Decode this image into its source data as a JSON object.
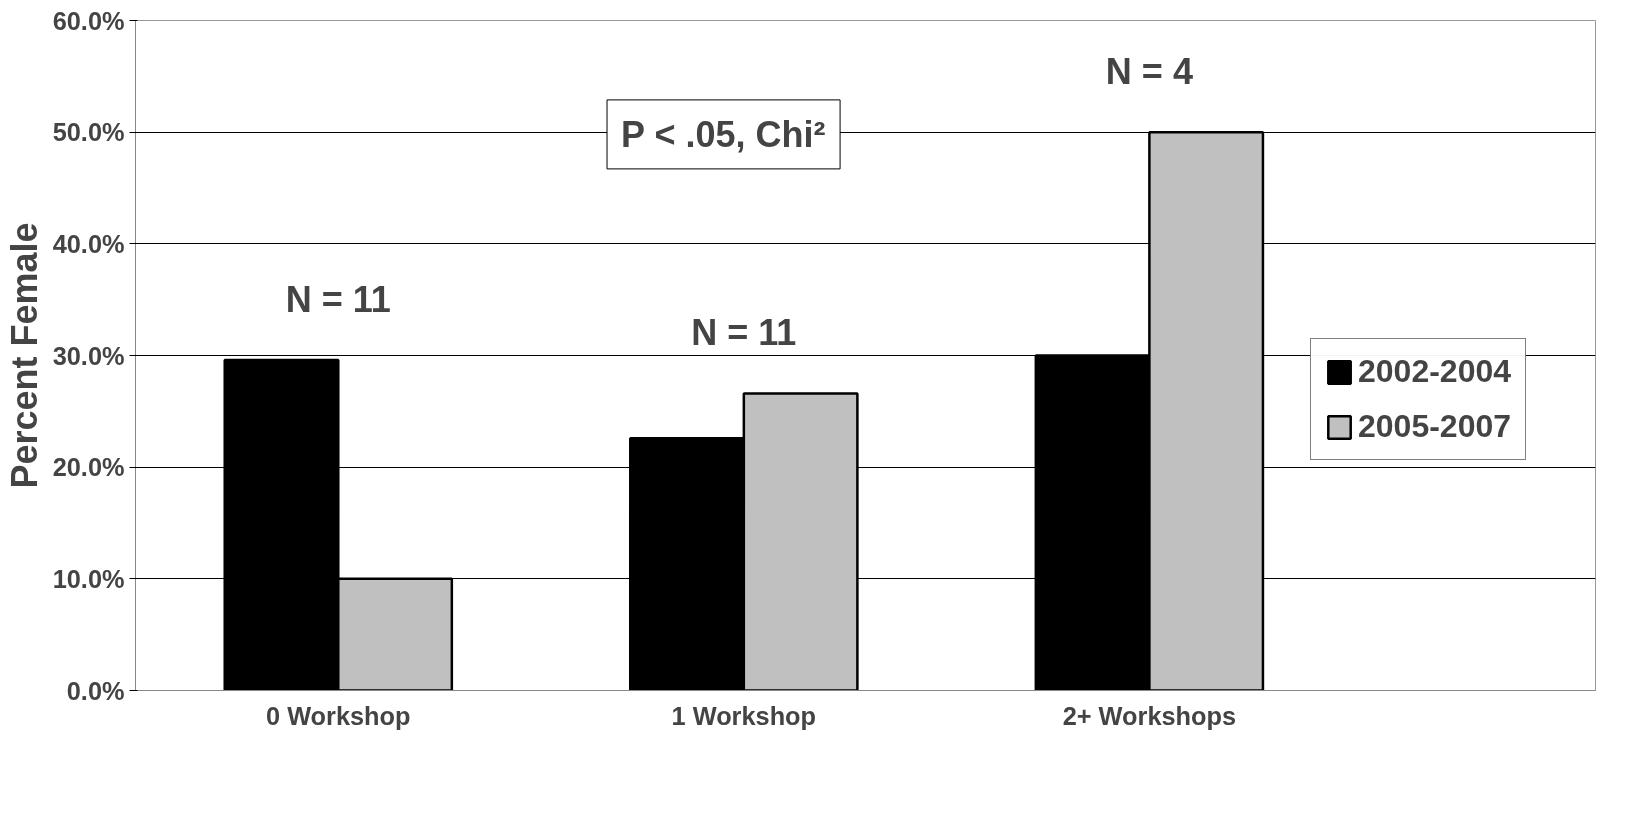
{
  "chart_data": {
    "type": "bar",
    "ylabel": "Percent Female",
    "categories": [
      "0 Workshop",
      "1 Workshop",
      "2+ Workshops"
    ],
    "series": [
      {
        "name": "2002-2004",
        "color": "#000000",
        "values": [
          29.6,
          22.6,
          30.0
        ]
      },
      {
        "name": "2005-2007",
        "color": "#c0c0c0",
        "values": [
          10.0,
          26.6,
          50.0
        ]
      }
    ],
    "ylim": [
      0,
      60
    ],
    "yticks": [
      {
        "value": 0,
        "label": "0.0%"
      },
      {
        "value": 10,
        "label": "10.0%"
      },
      {
        "value": 20,
        "label": "20.0%"
      },
      {
        "value": 30,
        "label": "30.0%"
      },
      {
        "value": 40,
        "label": "40.0%"
      },
      {
        "value": 50,
        "label": "50.0%"
      },
      {
        "value": 60,
        "label": "60.0%"
      }
    ],
    "grid": "y",
    "legend": "right",
    "annotations": [
      "N = 11",
      "N = 11",
      "N = 4",
      "P < .05, Chi²"
    ]
  }
}
